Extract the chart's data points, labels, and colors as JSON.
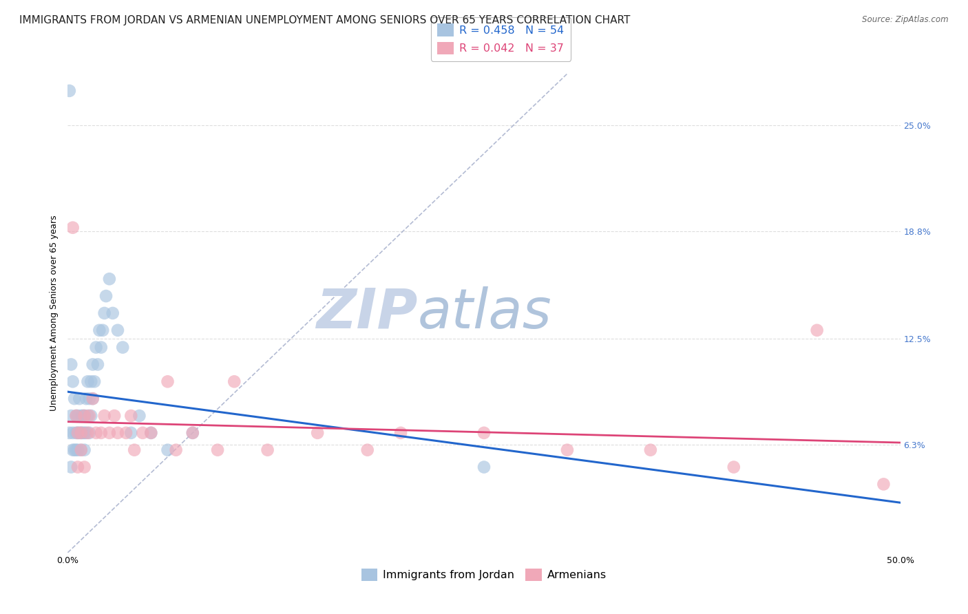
{
  "title": "IMMIGRANTS FROM JORDAN VS ARMENIAN UNEMPLOYMENT AMONG SENIORS OVER 65 YEARS CORRELATION CHART",
  "source": "Source: ZipAtlas.com",
  "ylabel": "Unemployment Among Seniors over 65 years",
  "legend_label1": "Immigrants from Jordan",
  "legend_label2": "Armenians",
  "r1": 0.458,
  "n1": 54,
  "r2": 0.042,
  "n2": 37,
  "color1": "#a8c4e0",
  "color2": "#f0a8b8",
  "line_color1": "#2266cc",
  "line_color2": "#dd4477",
  "dash_color": "#a0aac8",
  "watermark_zip": "ZIP",
  "watermark_atlas": "atlas",
  "watermark_color_zip": "#c8d0e0",
  "watermark_color_atlas": "#b8c8d8",
  "background_color": "#ffffff",
  "grid_color": "#dddddd",
  "right_label_color": "#4477cc",
  "jordan_x": [
    0.001,
    0.002,
    0.002,
    0.003,
    0.003,
    0.004,
    0.004,
    0.005,
    0.005,
    0.005,
    0.006,
    0.006,
    0.006,
    0.007,
    0.007,
    0.008,
    0.008,
    0.008,
    0.009,
    0.009,
    0.01,
    0.01,
    0.01,
    0.011,
    0.011,
    0.012,
    0.012,
    0.013,
    0.013,
    0.014,
    0.014,
    0.015,
    0.015,
    0.016,
    0.017,
    0.018,
    0.019,
    0.02,
    0.021,
    0.022,
    0.023,
    0.025,
    0.027,
    0.03,
    0.033,
    0.038,
    0.043,
    0.05,
    0.06,
    0.075,
    0.001,
    0.002,
    0.003,
    0.25
  ],
  "jordan_y": [
    0.07,
    0.08,
    0.05,
    0.07,
    0.06,
    0.09,
    0.06,
    0.07,
    0.08,
    0.06,
    0.07,
    0.08,
    0.06,
    0.07,
    0.09,
    0.08,
    0.07,
    0.06,
    0.07,
    0.08,
    0.07,
    0.08,
    0.06,
    0.09,
    0.07,
    0.1,
    0.08,
    0.09,
    0.07,
    0.1,
    0.08,
    0.11,
    0.09,
    0.1,
    0.12,
    0.11,
    0.13,
    0.12,
    0.13,
    0.14,
    0.15,
    0.16,
    0.14,
    0.13,
    0.12,
    0.07,
    0.08,
    0.07,
    0.06,
    0.07,
    0.27,
    0.11,
    0.1,
    0.05
  ],
  "armenian_x": [
    0.003,
    0.005,
    0.006,
    0.008,
    0.01,
    0.012,
    0.013,
    0.015,
    0.017,
    0.02,
    0.022,
    0.025,
    0.028,
    0.03,
    0.035,
    0.038,
    0.04,
    0.045,
    0.05,
    0.06,
    0.065,
    0.075,
    0.09,
    0.1,
    0.12,
    0.15,
    0.18,
    0.2,
    0.25,
    0.3,
    0.35,
    0.4,
    0.45,
    0.49,
    0.006,
    0.008,
    0.01
  ],
  "armenian_y": [
    0.19,
    0.08,
    0.07,
    0.07,
    0.08,
    0.07,
    0.08,
    0.09,
    0.07,
    0.07,
    0.08,
    0.07,
    0.08,
    0.07,
    0.07,
    0.08,
    0.06,
    0.07,
    0.07,
    0.1,
    0.06,
    0.07,
    0.06,
    0.1,
    0.06,
    0.07,
    0.06,
    0.07,
    0.07,
    0.06,
    0.06,
    0.05,
    0.13,
    0.04,
    0.05,
    0.06,
    0.05
  ],
  "xlim": [
    0.0,
    0.5
  ],
  "ylim": [
    0.0,
    0.28
  ],
  "y_tick_positions": [
    0.063,
    0.125,
    0.188,
    0.25
  ],
  "y_tick_labels": [
    "6.3%",
    "12.5%",
    "18.8%",
    "25.0%"
  ],
  "x_tick_positions": [
    0.0,
    0.5
  ],
  "x_tick_labels": [
    "0.0%",
    "50.0%"
  ],
  "title_fontsize": 11,
  "axis_fontsize": 9,
  "legend_fontsize": 11.5
}
